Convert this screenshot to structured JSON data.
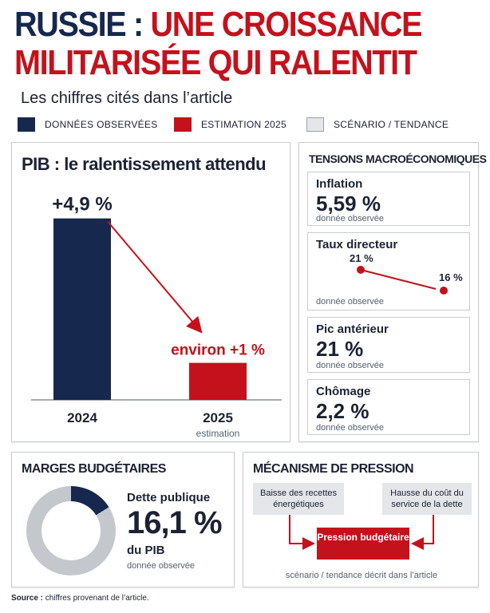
{
  "header": {
    "title_line1_part1": "RUSSIE :",
    "title_line1_part2": "UNE CROISSANCE",
    "title_line2": "MILITARISÉE QUI RALENTIT",
    "subtitle": "Les chiffres cités dans l’article"
  },
  "legend": [
    {
      "label": "DONNÉES OBSERVÉES",
      "color": "#16284d"
    },
    {
      "label": "ESTIMATION 2025",
      "color": "#c4111c"
    },
    {
      "label": "SCÉNARIO / TENDANCE",
      "color": "#e4e6ea"
    }
  ],
  "pib": {
    "title": "PIB : le ralentissement attendu"
  },
  "chart_data": {
    "type": "bar",
    "title": "PIB : le ralentissement attendu",
    "categories": [
      "2024",
      "2025"
    ],
    "category_sublabels": [
      "",
      "estimation"
    ],
    "values": [
      4.9,
      1.0
    ],
    "value_labels": [
      "+4,9 %",
      "environ +1 %"
    ],
    "colors": [
      "#16284d",
      "#c4111c"
    ],
    "ylim": [
      0,
      5
    ],
    "unit": "%",
    "arrow": {
      "from": "2024",
      "to": "2025",
      "color": "#c4111c"
    },
    "grid": false
  },
  "tensions": {
    "title": "TENSIONS MACROÉCONOMIQUES",
    "inflation": {
      "label": "Inflation",
      "value": "5,59 %",
      "note": "donnée observée"
    },
    "taux": {
      "label": "Taux directeur",
      "from_value": "21 %",
      "to_value": "16 %",
      "note": "donnée observée"
    },
    "pic": {
      "label": "Pic antérieur",
      "value": "21 %",
      "note": "donnée observée"
    },
    "chomage": {
      "label": "Chômage",
      "value": "2,2 %",
      "note": "donnée observée"
    }
  },
  "marges": {
    "title": "MARGES BUDGÉTAIRES",
    "label": "Dette publique",
    "value": "16,1 %",
    "unit": "du PIB",
    "note": "donnée observée",
    "share": 0.161,
    "colors": {
      "filled": "#16284d",
      "rest": "#c4c7cc"
    }
  },
  "mecanisme": {
    "title": "MÉCANISME DE PRESSION",
    "left_box": "Baisse des recettes énergétiques",
    "right_box": "Hausse du coût du service de la dette",
    "center_box": "Pression budgétaire",
    "note": "scénario / tendance décrit dans l’article"
  },
  "footer": {
    "source_label": "Source :",
    "source_text": " chiffres provenant de l’article."
  }
}
